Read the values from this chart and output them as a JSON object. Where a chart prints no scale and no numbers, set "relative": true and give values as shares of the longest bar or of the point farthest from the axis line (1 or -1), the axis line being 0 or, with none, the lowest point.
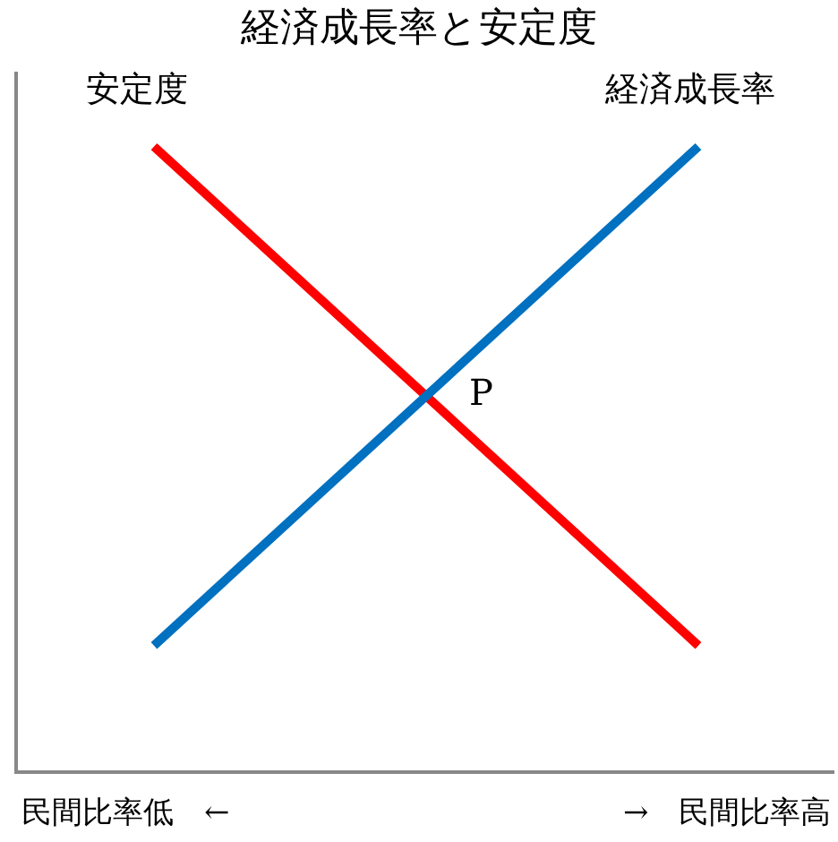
{
  "chart_data": {
    "type": "line",
    "title": "経済成長率と安定度",
    "relative": true,
    "categories": [
      null,
      null
    ],
    "series": [
      {
        "name": "安定度",
        "color": "#ff0000",
        "values": [
          1,
          0.2
        ]
      },
      {
        "name": "経済成長率",
        "color": "#0070c0",
        "values": [
          0.2,
          1
        ]
      }
    ],
    "annotations": [
      "P",
      "民間比率低　←",
      "→　民間比率高"
    ],
    "legend": false,
    "marker": "none",
    "line_style": "solid"
  }
}
